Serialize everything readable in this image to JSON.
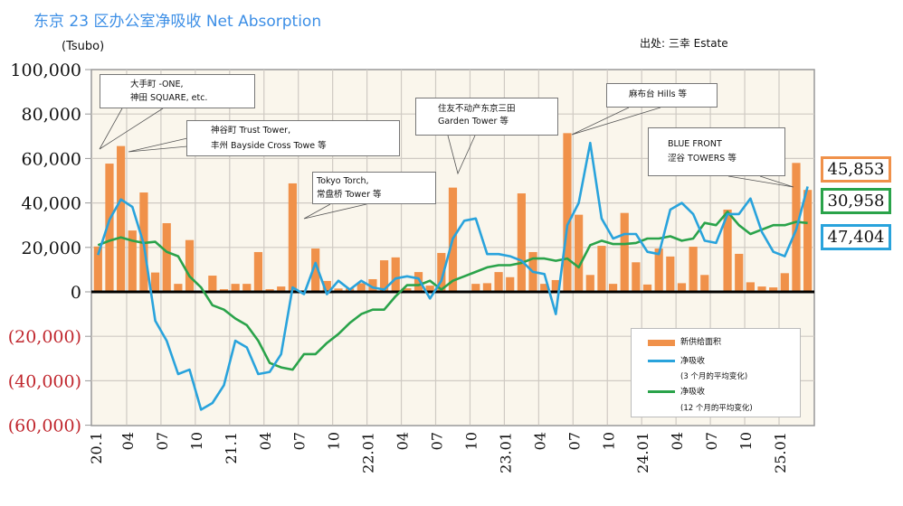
{
  "title": "东京 23 区办公室净吸收 Net Absorption",
  "unit_label": "(Tsubo)",
  "source": "出处: 三幸 Estate",
  "colors": {
    "supply": "#f0914a",
    "absorption_3m": "#29a3dc",
    "absorption_12m": "#2aa34a",
    "negative_tick": "#c0262d",
    "plot_bg": "#faf6ec",
    "grid": "#cfcac3"
  },
  "callouts": [
    {
      "lines": [
        "大手町 -ONE,",
        "神田 SQUARE, etc."
      ]
    },
    {
      "lines": [
        "神谷町  Trust Tower,",
        "丰州  Bayside Cross Towe 等"
      ]
    },
    {
      "lines": [
        "Tokyo Torch,",
        "常盘桥 Tower 等"
      ]
    },
    {
      "lines": [
        "住友不动产东京三田",
        "Garden Tower 等"
      ]
    },
    {
      "lines": [
        "麻布台 Hills 等"
      ]
    },
    {
      "lines": [
        "BLUE FRONT",
        "涩谷 TOWERS 等"
      ]
    }
  ],
  "legend": {
    "supply": "新供给面积",
    "abs3_title": "净吸收",
    "abs3_sub": "(3 个月的平均变化)",
    "abs12_title": "净吸收",
    "abs12_sub": "(12 个月的平均变化)"
  },
  "latest_values": {
    "supply": "45,853",
    "absorption_12m": "30,958",
    "absorption_3m": "47,404"
  },
  "chart_data": {
    "type": "bar+line",
    "title": "东京 23 区办公室净吸收 Net Absorption",
    "ylabel": "(Tsubo)",
    "ylim": [
      -60000,
      100000
    ],
    "yticks": [
      100000,
      80000,
      60000,
      40000,
      20000,
      0,
      -20000,
      -40000,
      -60000
    ],
    "ytick_labels": [
      "100,000",
      "80,000",
      "60,000",
      "40,000",
      "20,000",
      "0",
      "(20,000)",
      "(40,000)",
      "(60,000)"
    ],
    "x_start": "2020-01",
    "x_end": "2025-03",
    "xtick_labels": [
      "20.1",
      "04",
      "07",
      "10",
      "21.1",
      "04",
      "07",
      "10",
      "22.01",
      "04",
      "07",
      "10",
      "23.01",
      "04",
      "07",
      "10",
      "24.01",
      "04",
      "07",
      "10",
      "25.01"
    ],
    "grid": true,
    "legend_position": "bottom-right",
    "series": [
      {
        "name": "新供给面积",
        "type": "bar",
        "values": [
          20400,
          57700,
          65600,
          27600,
          44700,
          8700,
          30900,
          3600,
          23300,
          300,
          7300,
          1200,
          3600,
          3600,
          17900,
          1200,
          2400,
          48800,
          500,
          19500,
          4900,
          1500,
          1500,
          3900,
          5700,
          14200,
          15500,
          1600,
          8900,
          2800,
          17500,
          46900,
          0,
          3600,
          3900,
          8900,
          6600,
          44300,
          17900,
          3600,
          5300,
          71400,
          34700,
          7600,
          20700,
          3600,
          35500,
          13300,
          3300,
          19500,
          15900,
          3900,
          20300,
          7600,
          400,
          37000,
          17100,
          4300,
          2400,
          2000,
          8400,
          58000,
          45853
        ]
      },
      {
        "name": "净吸收 (3 个月的平均变化)",
        "type": "line",
        "values": [
          16600,
          32500,
          41600,
          38200,
          21500,
          -13000,
          -22000,
          -37000,
          -35000,
          -53000,
          -50000,
          -42000,
          -22000,
          -25000,
          -37000,
          -36000,
          -28000,
          2000,
          -1000,
          13000,
          -1000,
          5000,
          1000,
          5000,
          2000,
          1000,
          6000,
          7000,
          6000,
          -3000,
          5000,
          24000,
          32000,
          33000,
          17000,
          17000,
          16000,
          14000,
          9000,
          8000,
          -10000,
          30000,
          40000,
          67000,
          33000,
          24000,
          26000,
          26000,
          18000,
          17000,
          37000,
          40000,
          35000,
          23000,
          22000,
          35000,
          35000,
          42000,
          27000,
          18000,
          16000,
          28000,
          47404
        ]
      },
      {
        "name": "净吸收 (12 个月的平均变化)",
        "type": "line",
        "values": [
          21000,
          23000,
          24500,
          23000,
          22000,
          22500,
          18000,
          16000,
          7000,
          2000,
          -6000,
          -8000,
          -12000,
          -15000,
          -22000,
          -32000,
          -34000,
          -35000,
          -28000,
          -28000,
          -23000,
          -19000,
          -14000,
          -10000,
          -8000,
          -8000,
          -2000,
          3000,
          3000,
          5000,
          1000,
          5000,
          7000,
          9000,
          11000,
          12000,
          12000,
          13000,
          15000,
          15000,
          14000,
          15000,
          11000,
          21000,
          23000,
          21500,
          21500,
          22000,
          24000,
          24000,
          25000,
          23000,
          24000,
          31000,
          30000,
          36000,
          30000,
          26000,
          28000,
          30000,
          30000,
          31500,
          30958
        ]
      }
    ]
  }
}
